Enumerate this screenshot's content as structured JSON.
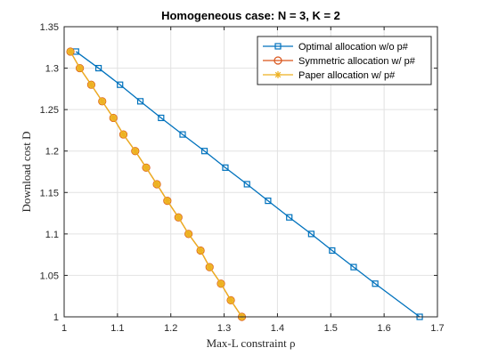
{
  "chart_data": {
    "type": "line",
    "title": "Homogeneous case: N = 3, K = 2",
    "xlabel": "Max-L constraint ρ",
    "ylabel": "Download cost D",
    "xlim": [
      1,
      1.7
    ],
    "ylim": [
      1,
      1.35
    ],
    "xticks": [
      "1",
      "1.1",
      "1.2",
      "1.3",
      "1.4",
      "1.5",
      "1.6",
      "1.7"
    ],
    "yticks": [
      "1",
      "1.05",
      "1.1",
      "1.15",
      "1.2",
      "1.25",
      "1.3",
      "1.35"
    ],
    "grid": true,
    "legend_position": "top-right",
    "series": [
      {
        "name": "Optimal allocation w/o p#",
        "color": "#0072BD",
        "marker": "square",
        "x": [
          1.0222,
          1.0645,
          1.1048,
          1.1429,
          1.1818,
          1.2222,
          1.2632,
          1.3023,
          1.3429,
          1.3824,
          1.4222,
          1.4634,
          1.5026,
          1.5429,
          1.5833,
          1.6667
        ],
        "y": [
          1.32,
          1.3,
          1.28,
          1.26,
          1.24,
          1.22,
          1.2,
          1.18,
          1.16,
          1.14,
          1.12,
          1.1,
          1.08,
          1.06,
          1.04,
          1.0
        ]
      },
      {
        "name": "Symmetric allocation w/ p#",
        "color": "#D95319",
        "marker": "circle",
        "x": [
          1.0118,
          1.0294,
          1.0508,
          1.0714,
          1.0923,
          1.1111,
          1.1333,
          1.1538,
          1.1739,
          1.1935,
          1.2143,
          1.2333,
          1.2558,
          1.2727,
          1.2941,
          1.3125,
          1.3333
        ],
        "y": [
          1.32,
          1.3,
          1.28,
          1.26,
          1.24,
          1.22,
          1.2,
          1.18,
          1.16,
          1.14,
          1.12,
          1.1,
          1.08,
          1.06,
          1.04,
          1.02,
          1.0
        ]
      },
      {
        "name": "Paper allocation w/ p#",
        "color": "#EDB120",
        "marker": "asterisk",
        "x": [
          1.0118,
          1.0294,
          1.0508,
          1.0714,
          1.0923,
          1.1111,
          1.1333,
          1.1538,
          1.1739,
          1.1935,
          1.2143,
          1.2333,
          1.2558,
          1.2727,
          1.2941,
          1.3125,
          1.3333
        ],
        "y": [
          1.32,
          1.3,
          1.28,
          1.26,
          1.24,
          1.22,
          1.2,
          1.18,
          1.16,
          1.14,
          1.12,
          1.1,
          1.08,
          1.06,
          1.04,
          1.02,
          1.0
        ]
      }
    ]
  }
}
